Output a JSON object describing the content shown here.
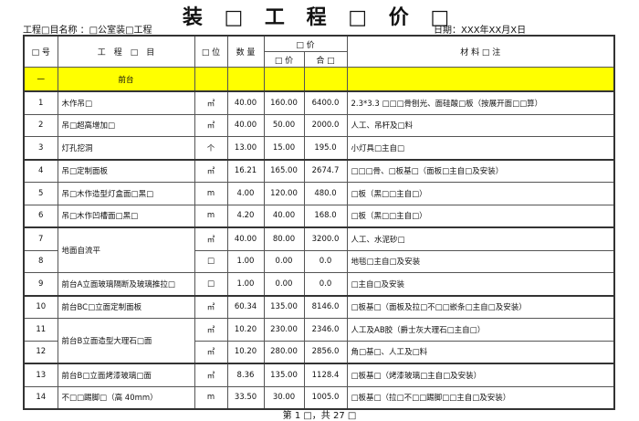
{
  "title": "装 □ 工 程 □ 价 □",
  "project": "工程□目名称 ：□公室装□工程",
  "date": "日期：XXX年XX月X日",
  "headers": {
    "no": "□ 号",
    "item": "工　程　□　目",
    "unit": "□ 位",
    "qty": "数 量",
    "price_group": "□ 价",
    "unit_price": "□ 价",
    "total": "合 □",
    "notes": "材 料 □ 注"
  },
  "section": {
    "no": "一",
    "name": "前台",
    "color": "#ffff00"
  },
  "rows": [
    {
      "no": "1",
      "item": "木作吊□",
      "unit": "㎡",
      "qty": "40.00",
      "price": "160.00",
      "total": "6400.0",
      "note": "2.3*3.3 □□□骨刨光、面硅酸□板（按展开面□□算）"
    },
    {
      "no": "2",
      "item": "吊□超高增加□",
      "unit": "㎡",
      "qty": "40.00",
      "price": "50.00",
      "total": "2000.0",
      "note": "人工、吊杆及□料"
    },
    {
      "no": "3",
      "item": "灯孔挖洞",
      "unit": "个",
      "qty": "13.00",
      "price": "15.00",
      "total": "195.0",
      "note": "小灯具□主自□"
    },
    {
      "no": "4",
      "item": "吊□定制面板",
      "unit": "㎡",
      "qty": "16.21",
      "price": "165.00",
      "total": "2674.7",
      "note": "□□□骨、□板基□（面板□主自□及安装）"
    },
    {
      "no": "5",
      "item": "吊□木作造型灯盒面□黑□",
      "unit": "m",
      "qty": "4.00",
      "price": "120.00",
      "total": "480.0",
      "note": "□板（黑□□主自□）"
    },
    {
      "no": "6",
      "item": "吊□木作凹槽面□黑□",
      "unit": "m",
      "qty": "4.20",
      "price": "40.00",
      "total": "168.0",
      "note": "□板（黑□□主自□）"
    },
    {
      "no": "7",
      "item": "地面自流平",
      "span": 2,
      "unit": "㎡",
      "qty": "40.00",
      "price": "80.00",
      "total": "3200.0",
      "note": "人工、水泥砂□"
    },
    {
      "no": "8",
      "unit": "□",
      "qty": "1.00",
      "price": "0.00",
      "total": "0.0",
      "note": "地毯□主自□及安装"
    },
    {
      "no": "9",
      "item": "前台A立面玻璃隔断及玻璃推拉□",
      "unit": "□",
      "qty": "1.00",
      "price": "0.00",
      "total": "0.0",
      "note": "□主自□及安装"
    },
    {
      "no": "10",
      "item": "前台BC□立面定制面板",
      "unit": "㎡",
      "qty": "60.34",
      "price": "135.00",
      "total": "8146.0",
      "note": "□板基□（面板及拉□不□□嵌条□主自□及安装）"
    },
    {
      "no": "11",
      "item": "前台B立面造型大理石□面",
      "span": 2,
      "unit": "㎡",
      "qty": "10.20",
      "price": "230.00",
      "total": "2346.0",
      "note": "人工及AB胶（爵士灰大理石□主自□）"
    },
    {
      "no": "12",
      "unit": "㎡",
      "qty": "10.20",
      "price": "280.00",
      "total": "2856.0",
      "note": "角□基□、人工及□料"
    },
    {
      "no": "13",
      "item": "前台B□立面烤漆玻璃□面",
      "unit": "㎡",
      "qty": "8.36",
      "price": "135.00",
      "total": "1128.4",
      "note": "□板基□（烤漆玻璃□主自□及安装）"
    },
    {
      "no": "14",
      "item": "不□□踢脚□（高 40mm）",
      "unit": "m",
      "qty": "33.50",
      "price": "30.00",
      "total": "1005.0",
      "note": "□板基□（拉□不□□踢脚□□主自□及安装）"
    }
  ],
  "footer": "第 1 □，共 27 □"
}
